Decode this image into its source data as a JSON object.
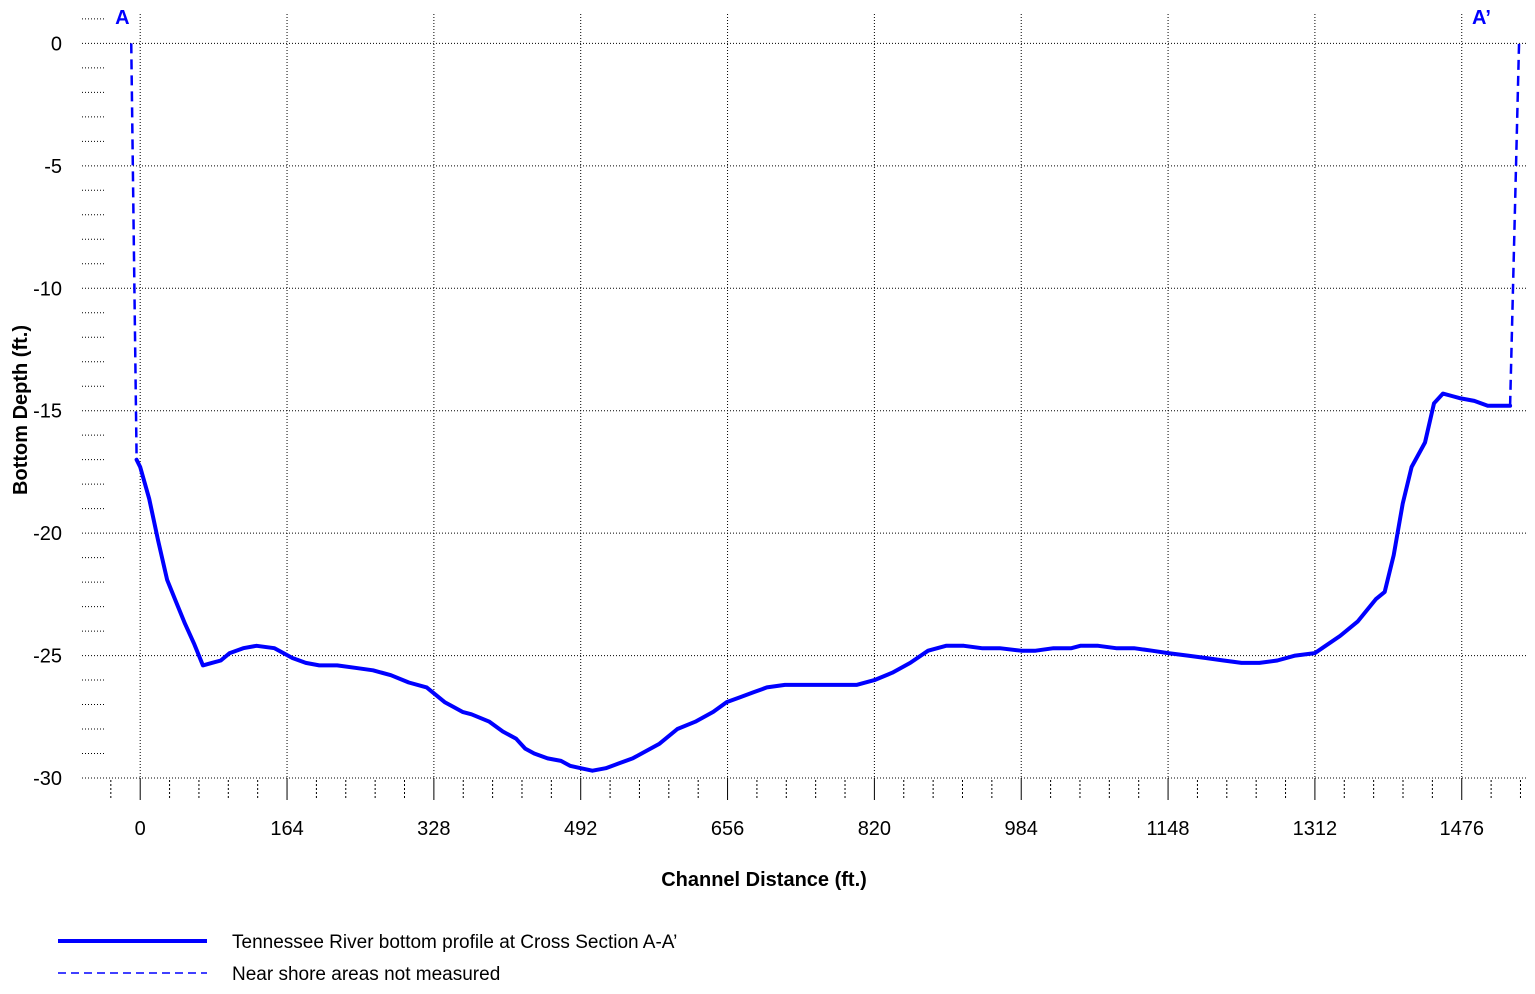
{
  "chart_data": {
    "type": "line",
    "xlabel": "Channel Distance (ft.)",
    "ylabel": "Bottom Depth (ft.)",
    "xlim": [
      -65,
      1550
    ],
    "ylim": [
      -30,
      1.2
    ],
    "x_ticks": [
      0,
      164,
      328,
      492,
      656,
      820,
      984,
      1148,
      1312,
      1476
    ],
    "y_ticks": [
      0,
      -5,
      -10,
      -15,
      -20,
      -25,
      -30
    ],
    "x_minor_step": 32.8,
    "y_minor_step": 1,
    "grid": true,
    "grid_style": "dotted",
    "line_color": "#0000ff",
    "legend_position": "bottom-left",
    "annotations": [
      {
        "text": "A",
        "x": -20,
        "y": 0.8
      },
      {
        "text": "A’",
        "x": 1498,
        "y": 0.8
      }
    ],
    "series": [
      {
        "name": "Tennessee River bottom profile at Cross Section A-A’",
        "style": "solid",
        "x": [
          -4,
          0,
          10,
          20,
          30,
          40,
          50,
          60,
          70,
          80,
          90,
          100,
          115,
          130,
          150,
          170,
          185,
          200,
          220,
          240,
          260,
          280,
          300,
          320,
          340,
          350,
          360,
          370,
          390,
          405,
          420,
          430,
          440,
          455,
          470,
          480,
          492,
          505,
          520,
          535,
          550,
          560,
          580,
          600,
          620,
          640,
          655,
          670,
          685,
          700,
          720,
          740,
          760,
          780,
          800,
          820,
          840,
          860,
          880,
          900,
          920,
          940,
          960,
          984,
          1000,
          1020,
          1040,
          1050,
          1070,
          1090,
          1110,
          1130,
          1148,
          1170,
          1190,
          1210,
          1230,
          1250,
          1270,
          1290,
          1312,
          1320,
          1340,
          1360,
          1380,
          1390,
          1400,
          1410,
          1420,
          1435,
          1445,
          1455,
          1465,
          1475,
          1490,
          1505,
          1510,
          1530
        ],
        "y": [
          -17,
          -17.3,
          -18.6,
          -20.3,
          -21.9,
          -22.8,
          -23.7,
          -24.5,
          -25.4,
          -25.3,
          -25.2,
          -24.9,
          -24.7,
          -24.6,
          -24.7,
          -25.1,
          -25.3,
          -25.4,
          -25.4,
          -25.5,
          -25.6,
          -25.8,
          -26.1,
          -26.3,
          -26.9,
          -27.1,
          -27.3,
          -27.4,
          -27.7,
          -28.1,
          -28.4,
          -28.8,
          -29.0,
          -29.2,
          -29.3,
          -29.5,
          -29.6,
          -29.7,
          -29.6,
          -29.4,
          -29.2,
          -29.0,
          -28.6,
          -28.0,
          -27.7,
          -27.3,
          -26.9,
          -26.7,
          -26.5,
          -26.3,
          -26.2,
          -26.2,
          -26.2,
          -26.2,
          -26.2,
          -26.0,
          -25.7,
          -25.3,
          -24.8,
          -24.6,
          -24.6,
          -24.7,
          -24.7,
          -24.8,
          -24.8,
          -24.7,
          -24.7,
          -24.6,
          -24.6,
          -24.7,
          -24.7,
          -24.8,
          -24.9,
          -25.0,
          -25.1,
          -25.2,
          -25.3,
          -25.3,
          -25.2,
          -25.0,
          -24.9,
          -24.7,
          -24.2,
          -23.6,
          -22.7,
          -22.4,
          -20.9,
          -18.8,
          -17.3,
          -16.3,
          -14.7,
          -14.3,
          -14.4,
          -14.5,
          -14.6,
          -14.8,
          -14.8,
          -14.8
        ]
      },
      {
        "name": "Near shore areas not measured",
        "style": "dashed",
        "segments": [
          {
            "x": [
              -10,
              -4
            ],
            "y": [
              0,
              -17
            ]
          },
          {
            "x": [
              1530,
              1540
            ],
            "y": [
              -14.8,
              0
            ]
          }
        ]
      }
    ]
  }
}
